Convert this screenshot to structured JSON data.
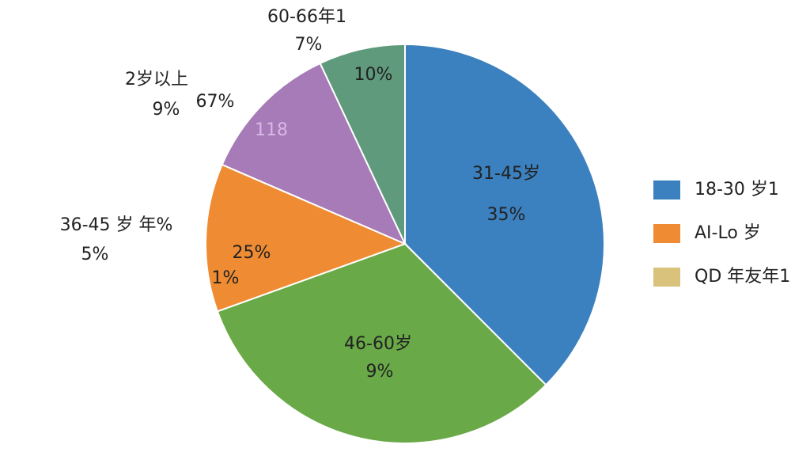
{
  "chart_data": {
    "type": "pie",
    "categories": [
      null,
      null,
      null,
      null,
      null
    ],
    "values": [
      37.5,
      32,
      12,
      11.5,
      7
    ],
    "colors": [
      "#3b80bf",
      "#69a947",
      "#ef8c33",
      "#a67bb7",
      "#5e9a7b"
    ],
    "annotations": [
      "60-66年1",
      "7%",
      "2岁以上",
      "9%",
      "67%",
      "118",
      "36-45 岁 年%",
      "5%",
      "25%",
      "1%",
      "10%",
      "31-45岁",
      "35%",
      "46-60岁",
      "9%"
    ],
    "legend": [
      {
        "label": "18-30 岁1",
        "color": "#3b80bf"
      },
      {
        "label": "AI-Lo 岁",
        "color": "#ef8c33"
      },
      {
        "label": "QD 年友年1",
        "color": "#d8c27c"
      }
    ]
  }
}
